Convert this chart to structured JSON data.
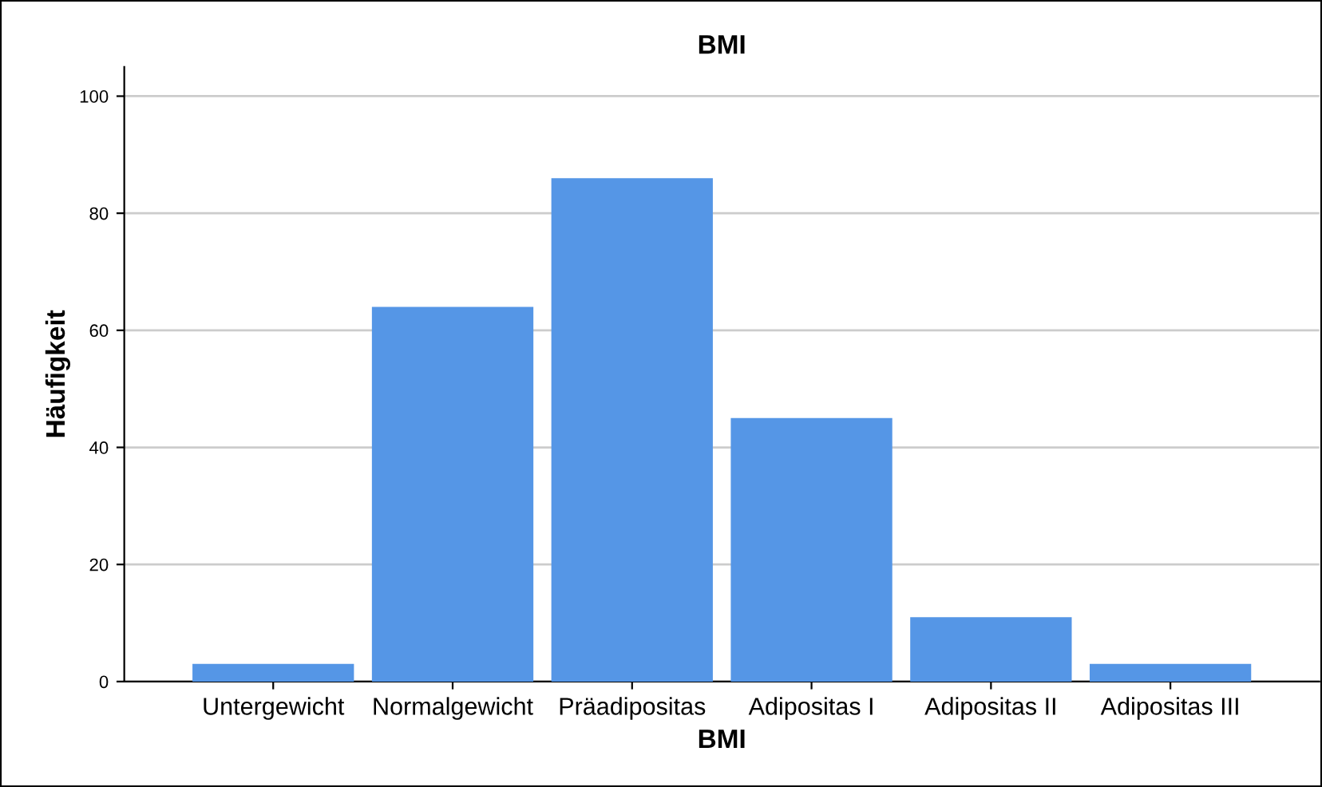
{
  "chart_data": {
    "type": "bar",
    "title": "BMI",
    "xlabel": "BMI",
    "ylabel": "Häufigkeit",
    "categories": [
      "Untergewicht",
      "Normalgewicht",
      "Präadipositas",
      "Adipositas I",
      "Adipositas II",
      "Adipositas III"
    ],
    "values": [
      3,
      64,
      86,
      45,
      11,
      3
    ],
    "color": "#5596e6",
    "ylim": [
      0,
      105
    ],
    "yticks": [
      0,
      20,
      40,
      60,
      80,
      100
    ],
    "grid": "y",
    "legend": false
  }
}
